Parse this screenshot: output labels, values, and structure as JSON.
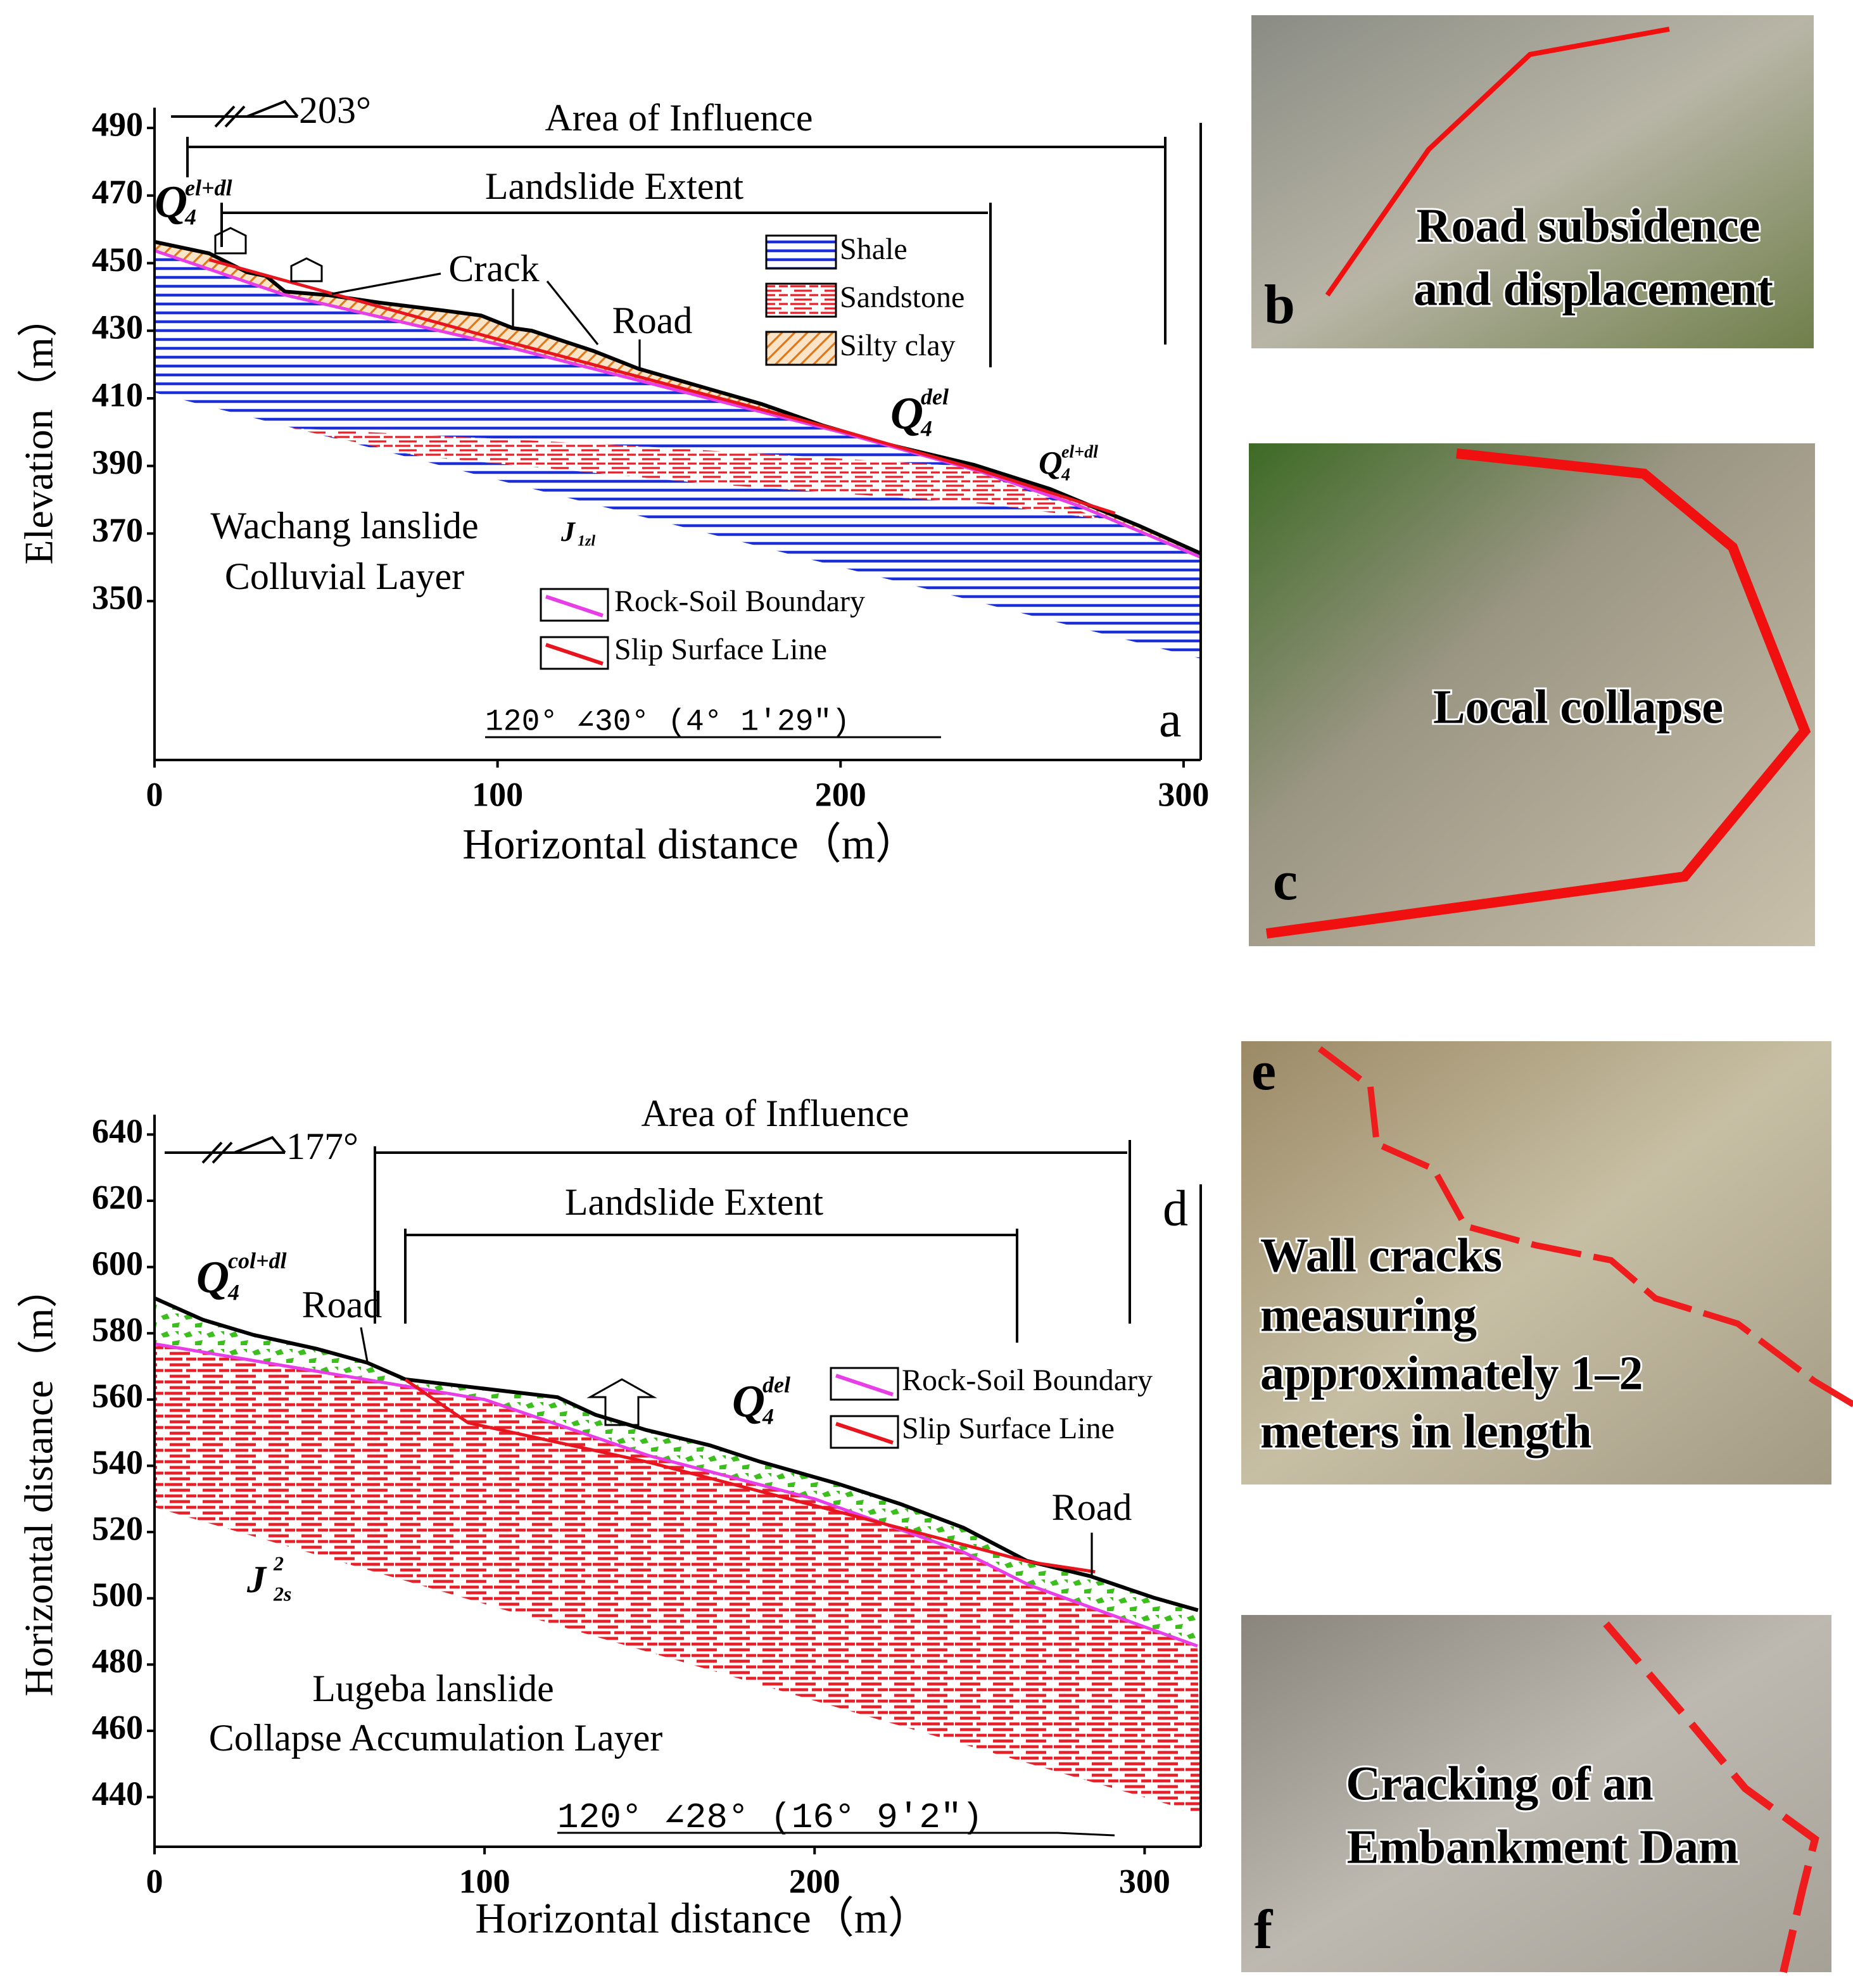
{
  "chart_data": [
    {
      "type": "profile",
      "panel": "a",
      "ylabel": "Elevation（m）",
      "xlabel": "Horizontal distance（m）",
      "azimuth": "203°",
      "orientation": "120°  ∠30°  (4°  1'29\")",
      "annotations": [
        "Area of Influence",
        "Landslide Extent",
        "Crack",
        "Road",
        "Wachang lanslide",
        "Colluvial Layer"
      ],
      "strata": [
        {
          "main": "Q",
          "sup": "el+dl",
          "sub": "4"
        },
        {
          "main": "Q",
          "sup": "del",
          "sub": "4"
        },
        {
          "main": "Q",
          "sup": "el+dl",
          "sub": "4"
        },
        {
          "main": "J",
          "sub": "1zl"
        }
      ],
      "xlim": [
        0,
        305
      ],
      "xticks": [
        0,
        100,
        200,
        300
      ],
      "ylim": [
        303,
        496
      ],
      "yticks": [
        350,
        370,
        390,
        410,
        430,
        450,
        470,
        490
      ],
      "legend": [
        {
          "name": "Shale",
          "color": "#1c2fd6",
          "hatch": "lines"
        },
        {
          "name": "Sandstone",
          "color": "#e8202a",
          "hatch": "dashes"
        },
        {
          "name": "Silty clay",
          "color": "#e07818",
          "hatch": "diagonal"
        }
      ],
      "profile": {
        "x": [
          0,
          15.9,
          27,
          32.5,
          38,
          50.9,
          65.7,
          84.1,
          95.2,
          104.4,
          110,
          128,
          141,
          154,
          177,
          195,
          214,
          239,
          261,
          287,
          305
        ],
        "values": [
          456.3,
          452.9,
          447.3,
          446.2,
          441.6,
          440.5,
          438.3,
          436.0,
          434.5,
          430.8,
          430.0,
          424.0,
          418.8,
          415.0,
          408.3,
          401.9,
          396.3,
          390.3,
          383.2,
          372.3,
          364.1
        ]
      },
      "series": [
        {
          "name": "Rock-Soil Boundary",
          "color": "#e83ee8",
          "x": [
            0,
            38,
            100,
            150,
            200,
            240,
            270,
            305
          ],
          "values": [
            453.7,
            440.6,
            426,
            413,
            400,
            388.6,
            378,
            363
          ]
        },
        {
          "name": "Slip Surface Line",
          "color": "#e8141e",
          "x": [
            16,
            100,
            200,
            240,
            280
          ],
          "values": [
            451,
            427.5,
            400.5,
            389,
            376
          ]
        }
      ]
    },
    {
      "type": "profile",
      "panel": "d",
      "ylabel": "Horizontal distance（m）",
      "xlabel": "Horizontal distance（m）",
      "azimuth": "177°",
      "orientation": "120°  ∠28°  (16°  9'2\")",
      "annotations": [
        "Area of Influence",
        "Landslide Extent",
        "Road",
        "Road",
        "Lugeba lanslide",
        "Collapse Accumulation Layer"
      ],
      "strata": [
        {
          "main": "Q",
          "sup": "col+dl",
          "sub": "4"
        },
        {
          "main": "Q",
          "sup": "del",
          "sub": "4"
        },
        {
          "main": "J",
          "sup": "2",
          "sub": "2s"
        }
      ],
      "xlim": [
        0,
        317
      ],
      "xticks": [
        0,
        100,
        200,
        300
      ],
      "ylim": [
        425,
        646
      ],
      "yticks": [
        440,
        460,
        480,
        500,
        520,
        540,
        560,
        580,
        600,
        620,
        640
      ],
      "profile": {
        "x": [
          0,
          14.6,
          30,
          49.2,
          64.5,
          76,
          99,
          122.1,
          133.6,
          149,
          168.2,
          183.6,
          206.7,
          225.9,
          245.1,
          264.3,
          283.5,
          302.7,
          316.2
        ],
        "values": [
          590.6,
          584.1,
          579.5,
          575.3,
          571.1,
          566.1,
          563.4,
          560.7,
          555.4,
          550.8,
          546.2,
          541.2,
          534.7,
          528.5,
          521.3,
          511.3,
          506.7,
          500.2,
          496.4
        ]
      },
      "series": [
        {
          "name": "Rock-Soil Boundary",
          "color": "#e83ee8",
          "x": [
            0,
            100,
            150,
            200,
            245,
            265,
            316
          ],
          "values": [
            576.8,
            560,
            543,
            530,
            514,
            504,
            485.6
          ]
        },
        {
          "name": "Slip Surface Line",
          "color": "#e8141e",
          "x": [
            76,
            95,
            150,
            200,
            265,
            285
          ],
          "values": [
            566,
            553,
            541,
            528,
            511,
            508
          ]
        }
      ]
    }
  ],
  "photos": [
    {
      "label": "b",
      "caption": [
        "Road subsidence",
        "and displacement"
      ]
    },
    {
      "label": "c",
      "caption": [
        "Local collapse"
      ]
    },
    {
      "label": "e",
      "caption": [
        "Wall cracks",
        "measuring",
        "approximately 1–2",
        "meters in length"
      ]
    },
    {
      "label": "f",
      "caption": [
        "Cracking of an",
        "Embankment Dam"
      ]
    }
  ]
}
